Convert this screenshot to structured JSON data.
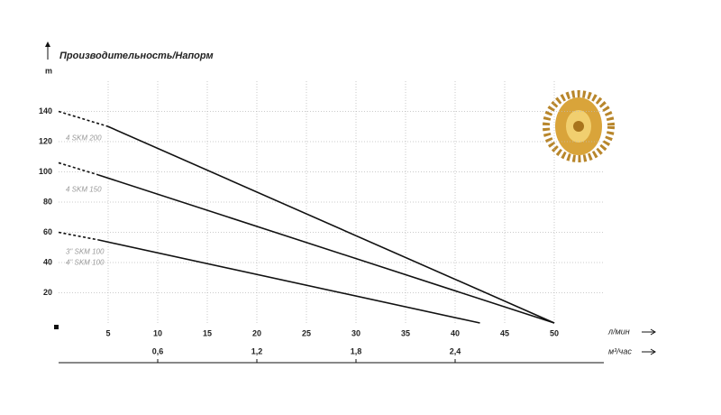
{
  "chart_data": {
    "type": "line",
    "title": "Производительность/Напорм",
    "y_label": "m",
    "x_label": "л/мин",
    "x2_label": "м³/час",
    "xlim": [
      0,
      55
    ],
    "xticks": [
      5,
      10,
      15,
      20,
      25,
      30,
      35,
      40,
      45,
      50
    ],
    "x2lim": [
      0,
      3.3
    ],
    "x2ticks": [
      {
        "value": 0.6,
        "label": "0,6"
      },
      {
        "value": 1.2,
        "label": "1,2"
      },
      {
        "value": 1.8,
        "label": "1,8"
      },
      {
        "value": 2.4,
        "label": "2,4"
      }
    ],
    "ylim": [
      0,
      160
    ],
    "yticks": [
      20,
      40,
      60,
      80,
      100,
      120,
      140
    ],
    "grid": true,
    "color": "#111111",
    "segment_styles": [
      "dashed",
      "solid"
    ],
    "series": [
      {
        "labels": [
          "4 SKM 200"
        ],
        "x": [
          0,
          5,
          50
        ],
        "values": [
          140,
          130,
          0
        ]
      },
      {
        "labels": [
          "4 SKM 150"
        ],
        "x": [
          0,
          4,
          50
        ],
        "values": [
          106,
          98,
          0
        ]
      },
      {
        "labels": [
          "3\" SKM 100",
          "4\" SKM 100"
        ],
        "x": [
          0,
          4,
          42.5
        ],
        "values": [
          60,
          55,
          0
        ]
      }
    ]
  }
}
